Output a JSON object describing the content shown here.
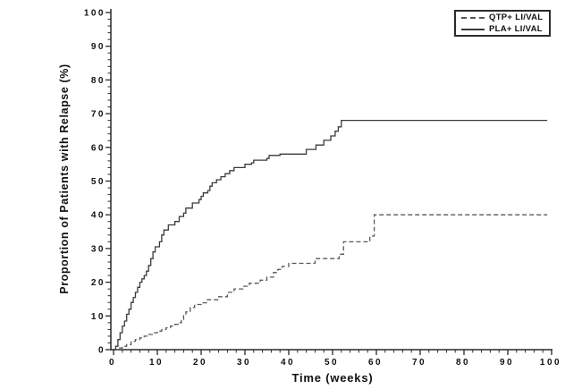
{
  "chart_data": {
    "type": "line",
    "subtype": "step-after",
    "title": "",
    "xlabel": "Time (weeks)",
    "ylabel": "Proportion of Patients with Relapse (%)",
    "xlim": [
      0,
      100
    ],
    "ylim": [
      0,
      100
    ],
    "x_major_ticks": [
      0,
      10,
      20,
      30,
      40,
      50,
      60,
      70,
      80,
      90,
      100
    ],
    "y_major_ticks": [
      0,
      10,
      20,
      30,
      40,
      50,
      60,
      70,
      80,
      90,
      100
    ],
    "minor_tick_interval": 2,
    "x_end": 99,
    "grid": false,
    "background_color": "#ffffff",
    "axis_color": "#2a2a2a",
    "text_color": "#111111",
    "legend": {
      "position": "top-right",
      "border": true,
      "entries": [
        "QTP+ LI/VAL",
        "PLA+ LI/VAL"
      ]
    },
    "series": [
      {
        "name": "QTP+ LI/VAL",
        "style": "dashed",
        "color": "#5a5a5a",
        "points": [
          [
            0,
            0
          ],
          [
            1,
            0.5
          ],
          [
            2,
            1
          ],
          [
            3,
            1.5
          ],
          [
            4,
            2.5
          ],
          [
            5,
            3
          ],
          [
            6,
            3.5
          ],
          [
            7,
            4
          ],
          [
            8,
            4.5
          ],
          [
            9,
            5
          ],
          [
            10,
            5.5
          ],
          [
            11,
            6
          ],
          [
            12,
            6.5
          ],
          [
            13,
            7
          ],
          [
            14,
            7.5
          ],
          [
            15,
            8
          ],
          [
            15.5,
            9
          ],
          [
            16,
            10.3
          ],
          [
            16.5,
            11.2
          ],
          [
            17.5,
            12.5
          ],
          [
            18.5,
            13.4
          ],
          [
            20,
            13.9
          ],
          [
            21.4,
            14.8
          ],
          [
            24,
            15.7
          ],
          [
            26,
            17
          ],
          [
            27.5,
            18
          ],
          [
            29.5,
            18.8
          ],
          [
            31,
            19.7
          ],
          [
            33.5,
            20.6
          ],
          [
            35,
            21.5
          ],
          [
            36.5,
            22.9
          ],
          [
            37.5,
            23.8
          ],
          [
            38.5,
            24.7
          ],
          [
            40,
            25.6
          ],
          [
            46,
            27
          ],
          [
            51.5,
            28.3
          ],
          [
            52.5,
            32
          ],
          [
            58.5,
            33.7
          ],
          [
            59.5,
            40
          ]
        ]
      },
      {
        "name": "PLA+ LI/VAL",
        "style": "solid",
        "color": "#3a3a3a",
        "points": [
          [
            0,
            0
          ],
          [
            0.5,
            1
          ],
          [
            1,
            3
          ],
          [
            1.5,
            5
          ],
          [
            2,
            7
          ],
          [
            2.5,
            8.5
          ],
          [
            3,
            10.5
          ],
          [
            3.5,
            12
          ],
          [
            4,
            14
          ],
          [
            4.5,
            15.5
          ],
          [
            5,
            17
          ],
          [
            5.5,
            18.5
          ],
          [
            6,
            20
          ],
          [
            6.5,
            21
          ],
          [
            7,
            22
          ],
          [
            7.5,
            23.3
          ],
          [
            8,
            25
          ],
          [
            8.5,
            27
          ],
          [
            9,
            29
          ],
          [
            9.5,
            30.5
          ],
          [
            10.5,
            32
          ],
          [
            11,
            34
          ],
          [
            11.5,
            35.5
          ],
          [
            12.5,
            37
          ],
          [
            14,
            38
          ],
          [
            15,
            39.5
          ],
          [
            16,
            40.5
          ],
          [
            16.5,
            42
          ],
          [
            18,
            43.5
          ],
          [
            19.5,
            44.5
          ],
          [
            20,
            45.5
          ],
          [
            20.5,
            46.5
          ],
          [
            21.5,
            47.2
          ],
          [
            22,
            48.5
          ],
          [
            22.5,
            49.5
          ],
          [
            23.5,
            50.4
          ],
          [
            24.5,
            51.3
          ],
          [
            25.5,
            52.2
          ],
          [
            26.5,
            53.1
          ],
          [
            27.5,
            54
          ],
          [
            30,
            55
          ],
          [
            31.5,
            55.4
          ],
          [
            32,
            56.2
          ],
          [
            35,
            56.7
          ],
          [
            35.5,
            57.6
          ],
          [
            38,
            58
          ],
          [
            44,
            59.4
          ],
          [
            46.2,
            60.7
          ],
          [
            48,
            62.1
          ],
          [
            49.6,
            63.4
          ],
          [
            50.6,
            64.8
          ],
          [
            51.3,
            66.1
          ],
          [
            52,
            68
          ]
        ]
      }
    ]
  }
}
